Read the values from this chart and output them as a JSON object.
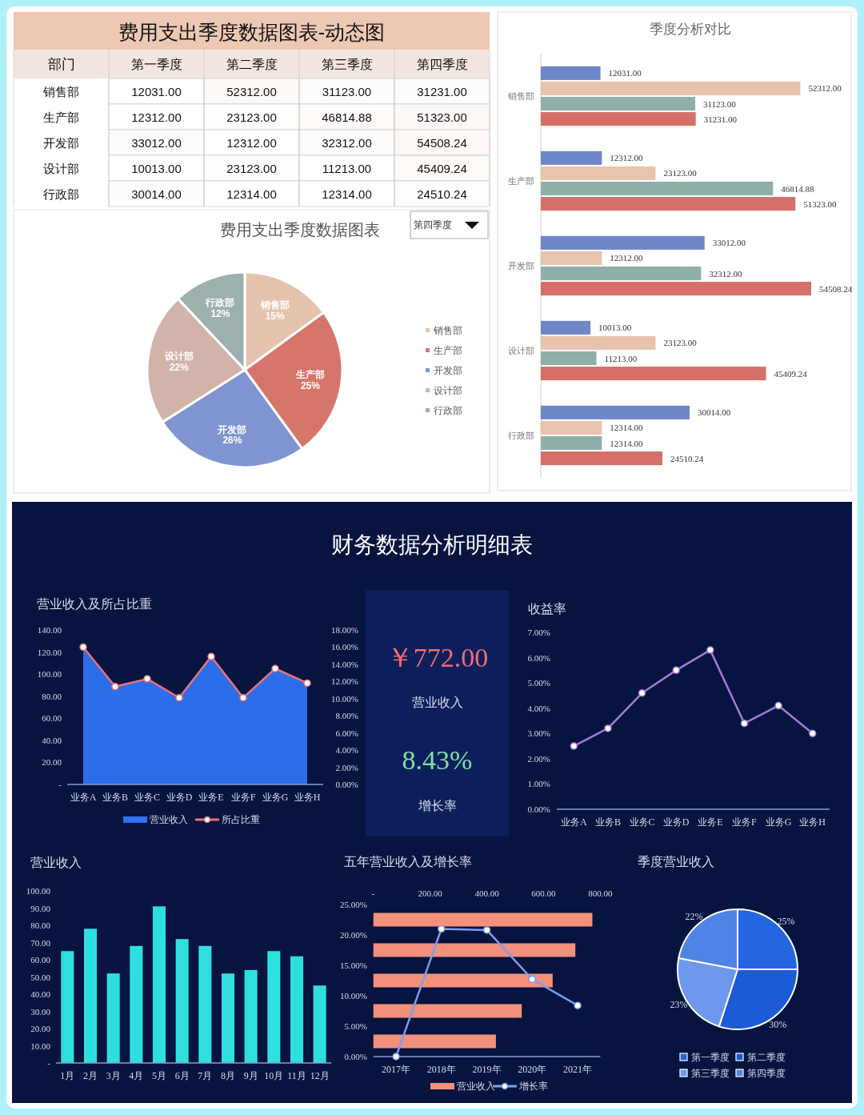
{
  "chart_data": [
    {
      "type": "heatmap",
      "title": "费用支出季度数据图表-动态图",
      "ylabel": "部门",
      "categories": [
        "第一季度",
        "第二季度",
        "第三季度",
        "第四季度"
      ],
      "y_categories": [
        "销售部",
        "生产部",
        "开发部",
        "设计部",
        "行政部"
      ],
      "cells": [
        [
          12031,
          52312,
          31123,
          31231
        ],
        [
          12312,
          23123,
          46814.88,
          51323
        ],
        [
          33012,
          12312,
          32312,
          54508.24
        ],
        [
          10013,
          23123,
          11213,
          45409.24
        ],
        [
          30014,
          12314,
          12314,
          24510.24
        ]
      ],
      "cell_labels": [
        [
          "12031.00",
          "52312.00",
          "31123.00",
          "31231.00"
        ],
        [
          "12312.00",
          "23123.00",
          "46814.88",
          "51323.00"
        ],
        [
          "33012.00",
          "12312.00",
          "32312.00",
          "54508.24"
        ],
        [
          "10013.00",
          "23123.00",
          "11213.00",
          "45409.24"
        ],
        [
          "30014.00",
          "12314.00",
          "12314.00",
          "24510.24"
        ]
      ]
    },
    {
      "type": "pie",
      "title": "费用支出季度数据图表",
      "annotations": [
        "第四季度"
      ],
      "categories": [
        "销售部",
        "生产部",
        "开发部",
        "设计部",
        "行政部"
      ],
      "values": [
        15,
        25,
        26,
        22,
        12
      ],
      "colors": [
        "#e6c3ad",
        "#d6766b",
        "#7f94d0",
        "#d2b3a9",
        "#9db0ae"
      ],
      "value_labels": [
        "销售部\n15%",
        "生产部\n25%",
        "开发部\n26%",
        "设计部\n22%",
        "行政部\n12%"
      ],
      "legend": "right"
    },
    {
      "type": "bar",
      "orientation": "horizontal",
      "title": "季度分析对比",
      "categories": [
        "销售部",
        "生产部",
        "开发部",
        "设计部",
        "行政部"
      ],
      "series": [
        {
          "color": "#6f86c8",
          "values": [
            12031,
            12312,
            33012,
            10013,
            30014
          ],
          "value_labels": [
            "12031.00",
            "12312.00",
            "33012.00",
            "10013.00",
            "30014.00"
          ]
        },
        {
          "color": "#e8c3ad",
          "values": [
            52312,
            23123,
            12312,
            23123,
            12314
          ],
          "value_labels": [
            "52312.00",
            "23123.00",
            "12312.00",
            "23123.00",
            "12314.00"
          ]
        },
        {
          "color": "#8fafaa",
          "values": [
            31123,
            46814.88,
            32312,
            11213,
            12314
          ],
          "value_labels": [
            "31123.00",
            "46814.88",
            "32312.00",
            "11213.00",
            "12314.00"
          ]
        },
        {
          "color": "#d66f69",
          "values": [
            31231,
            51323,
            54508.24,
            45409.24,
            24510.24
          ],
          "value_labels": [
            "31231.00",
            "51323.00",
            "54508.24",
            "45409.24",
            "24510.24"
          ]
        }
      ]
    },
    {
      "type": "other",
      "title": "财务数据分析明细表"
    },
    {
      "type": "area",
      "title": "营业收入及所占比重",
      "categories": [
        "业务A",
        "业务B",
        "业务C",
        "业务D",
        "业务E",
        "业务F",
        "业务G",
        "业务H"
      ],
      "ylim": [
        0,
        140
      ],
      "yticks": [
        {
          "value": 0,
          "label": "-"
        },
        {
          "value": 20,
          "label": "20.00"
        },
        {
          "value": 40,
          "label": "40.00"
        },
        {
          "value": 60,
          "label": "60.00"
        },
        {
          "value": 80,
          "label": "80.00"
        },
        {
          "value": 100,
          "label": "100.00"
        },
        {
          "value": 120,
          "label": "120.00"
        },
        {
          "value": 140,
          "label": "140.00"
        }
      ],
      "y2lim": [
        0,
        18
      ],
      "y2ticks": [
        {
          "value": 0,
          "label": "0.00%"
        },
        {
          "value": 2,
          "label": "2.00%"
        },
        {
          "value": 4,
          "label": "4.00%"
        },
        {
          "value": 6,
          "label": "6.00%"
        },
        {
          "value": 8,
          "label": "8.00%"
        },
        {
          "value": 10,
          "label": "10.00%"
        },
        {
          "value": 12,
          "label": "12.00%"
        },
        {
          "value": 14,
          "label": "14.00%"
        },
        {
          "value": 16,
          "label": "16.00%"
        },
        {
          "value": 18,
          "label": "18.00%"
        }
      ],
      "series": [
        {
          "name": "营业收入",
          "type": "area",
          "color": "#2e72f2",
          "values": [
            124,
            89,
            96,
            78.5,
            116,
            78.5,
            105,
            92
          ]
        },
        {
          "name": "所占比重",
          "type": "line",
          "axis": "y2",
          "color": "#e8737a",
          "marker": "circle",
          "values": [
            16,
            11.4,
            12.3,
            10.1,
            14.9,
            10.1,
            13.5,
            11.8
          ]
        }
      ],
      "legend": "bottom"
    },
    {
      "type": "other",
      "annotations": [
        "￥772.00",
        "营业收入",
        "8.43%",
        "增长率"
      ]
    },
    {
      "type": "line",
      "title": "收益率",
      "categories": [
        "业务A",
        "业务B",
        "业务C",
        "业务D",
        "业务E",
        "业务F",
        "业务G",
        "业务H"
      ],
      "ylim": [
        0,
        7
      ],
      "yticks": [
        {
          "value": 0,
          "label": "0.00%"
        },
        {
          "value": 1,
          "label": "1.00%"
        },
        {
          "value": 2,
          "label": "2.00%"
        },
        {
          "value": 3,
          "label": "3.00%"
        },
        {
          "value": 4,
          "label": "4.00%"
        },
        {
          "value": 5,
          "label": "5.00%"
        },
        {
          "value": 6,
          "label": "6.00%"
        },
        {
          "value": 7,
          "label": "7.00%"
        }
      ],
      "marker": "circle",
      "series": [
        {
          "color": "#a27ad8",
          "values": [
            2.5,
            3.2,
            4.6,
            5.5,
            6.3,
            3.4,
            4.1,
            3.0
          ]
        }
      ]
    },
    {
      "type": "bar",
      "title": "营业收入",
      "categories": [
        "1月",
        "2月",
        "3月",
        "4月",
        "5月",
        "6月",
        "7月",
        "8月",
        "9月",
        "10月",
        "11月",
        "12月"
      ],
      "ylim": [
        0,
        100
      ],
      "yticks": [
        {
          "value": 0,
          "label": "-"
        },
        {
          "value": 10,
          "label": "10.00"
        },
        {
          "value": 20,
          "label": "20.00"
        },
        {
          "value": 30,
          "label": "30.00"
        },
        {
          "value": 40,
          "label": "40.00"
        },
        {
          "value": 50,
          "label": "50.00"
        },
        {
          "value": 60,
          "label": "60.00"
        },
        {
          "value": 70,
          "label": "70.00"
        },
        {
          "value": 80,
          "label": "80.00"
        },
        {
          "value": 90,
          "label": "90.00"
        },
        {
          "value": 100,
          "label": "100.00"
        }
      ],
      "series": [
        {
          "color": "#2edfe0",
          "values": [
            65,
            78,
            52,
            68,
            91,
            72,
            68,
            52,
            54,
            65,
            62,
            45
          ]
        }
      ]
    },
    {
      "type": "bar",
      "orientation": "horizontal",
      "categories": [
        null,
        null,
        null,
        null,
        null
      ],
      "x2lim": [
        0,
        800
      ],
      "x2ticks": [
        {
          "value": 0,
          "label": "-"
        },
        {
          "value": 200,
          "label": "200.00"
        },
        {
          "value": 400,
          "label": "400.00"
        },
        {
          "value": 600,
          "label": "600.00"
        },
        {
          "value": 800,
          "label": "800.00"
        }
      ],
      "series": [
        {
          "name": "营业收入",
          "axis": "x2",
          "color": "#f2907c",
          "values": [
            772,
            712,
            632,
            523,
            432
          ]
        }
      ],
      "legend": "bottom"
    },
    {
      "type": "line",
      "title": "五年营业收入及增长率",
      "categories": [
        "2017年",
        "2018年",
        "2019年",
        "2020年",
        "2021年"
      ],
      "ylim": [
        0,
        25
      ],
      "yticks": [
        {
          "value": 0,
          "label": "0.00%"
        },
        {
          "value": 5,
          "label": "5.00%"
        },
        {
          "value": 10,
          "label": "10.00%"
        },
        {
          "value": 15,
          "label": "15.00%"
        },
        {
          "value": 20,
          "label": "20.00%"
        },
        {
          "value": 25,
          "label": "25.00%"
        }
      ],
      "series": [
        {
          "name": "增长率",
          "color": "#7d9df0",
          "marker": "circle",
          "values": [
            0,
            21,
            20.8,
            12.7,
            8.4
          ]
        }
      ],
      "legend": "bottom"
    },
    {
      "type": "pie",
      "title": "季度营业收入",
      "categories": [
        "第一季度",
        "第二季度",
        "第三季度",
        "第四季度"
      ],
      "values": [
        25,
        30,
        23,
        22
      ],
      "colors": [
        "#2366e0",
        "#1b5bd6",
        "#6e97ee",
        "#4f84e6"
      ],
      "value_labels": [
        "25%",
        "30%",
        "23%",
        "22%"
      ],
      "legend": "bottom"
    }
  ]
}
